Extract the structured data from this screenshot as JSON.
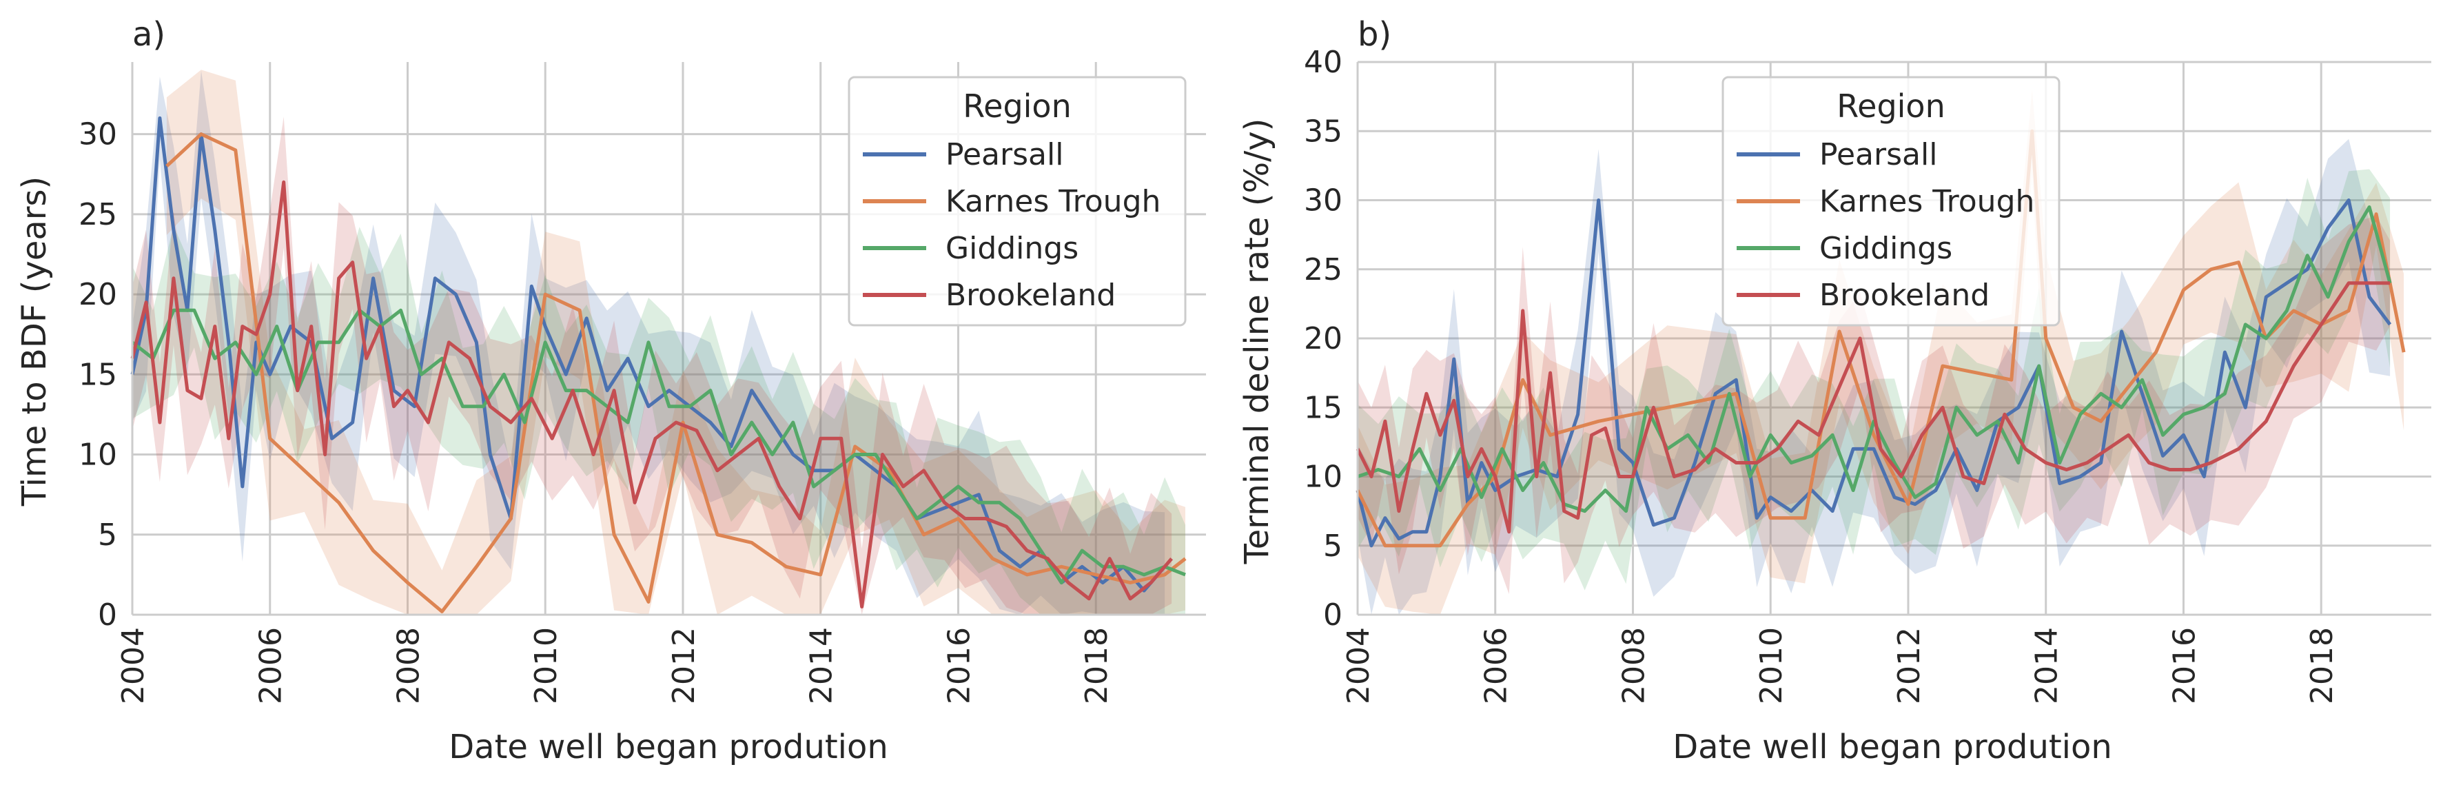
{
  "figure": {
    "panels": [
      {
        "tag": "a)",
        "xlabel": "Date well began prodution",
        "ylabel": "Time to BDF (years)",
        "legend_title": "Region",
        "legend_loc": "upper right"
      },
      {
        "tag": "b)",
        "xlabel": "Date well began prodution",
        "ylabel": "Terminal decline rate (%/y)",
        "legend_title": "Region",
        "legend_loc": "upper center"
      }
    ]
  },
  "chart_data": [
    {
      "type": "line",
      "panel": "a)",
      "xlabel": "Date well began prodution",
      "ylabel": "Time to BDF (years)",
      "xlim": [
        2004,
        2019.6
      ],
      "ylim": [
        0,
        34.5
      ],
      "xticks": [
        "2004",
        "2006",
        "2008",
        "2010",
        "2012",
        "2014",
        "2016",
        "2018"
      ],
      "yticks": [
        "0",
        "5",
        "10",
        "15",
        "20",
        "25",
        "30"
      ],
      "grid": true,
      "legend_title": "Region",
      "legend_loc": "upper right",
      "series": [
        {
          "name": "Pearsall",
          "color": "#4c72b0",
          "x": [
            2004,
            2004.2,
            2004.4,
            2004.6,
            2004.8,
            2005,
            2005.2,
            2005.4,
            2005.6,
            2005.8,
            2006,
            2006.3,
            2006.6,
            2006.9,
            2007.2,
            2007.5,
            2007.8,
            2008.1,
            2008.4,
            2008.7,
            2009,
            2009.2,
            2009.5,
            2009.8,
            2010,
            2010.3,
            2010.6,
            2010.9,
            2011.2,
            2011.5,
            2011.8,
            2012.1,
            2012.4,
            2012.7,
            2013,
            2013.3,
            2013.6,
            2013.9,
            2014.2,
            2014.5,
            2014.8,
            2015.1,
            2015.4,
            2015.7,
            2016,
            2016.3,
            2016.6,
            2016.9,
            2017.2,
            2017.5,
            2017.8,
            2018.1,
            2018.4,
            2018.7,
            2019
          ],
          "y": [
            15,
            19,
            31,
            24,
            19,
            30,
            24,
            17,
            8,
            17,
            15,
            18,
            17,
            11,
            12,
            21,
            14,
            13,
            21,
            20,
            17,
            10,
            6,
            20.5,
            18,
            15,
            18.5,
            14,
            16,
            13,
            14,
            13,
            12,
            10.5,
            14,
            12,
            10,
            9,
            9,
            10,
            9,
            8,
            6,
            6.5,
            7,
            7.5,
            4,
            3,
            4,
            2,
            3,
            2,
            3,
            1.5,
            3
          ]
        },
        {
          "name": "Karnes Trough",
          "color": "#dd8452",
          "x": [
            2004.5,
            2005,
            2005.5,
            2006,
            2006.5,
            2007,
            2007.5,
            2008,
            2008.5,
            2009,
            2009.5,
            2010,
            2010.5,
            2011,
            2011.5,
            2012,
            2012.5,
            2013,
            2013.5,
            2014,
            2014.5,
            2015,
            2015.5,
            2016,
            2016.5,
            2017,
            2017.5,
            2018,
            2018.5,
            2019,
            2019.3
          ],
          "y": [
            28,
            30,
            29,
            11,
            9,
            7,
            4,
            2,
            0.2,
            3,
            6,
            20,
            19,
            5,
            0.8,
            12,
            5,
            4.5,
            3,
            2.5,
            10.5,
            9,
            5,
            6,
            3.5,
            2.5,
            3,
            2.5,
            2,
            2.5,
            3.5
          ]
        },
        {
          "name": "Giddings",
          "color": "#55a868",
          "x": [
            2004,
            2004.3,
            2004.6,
            2004.9,
            2005.2,
            2005.5,
            2005.8,
            2006.1,
            2006.4,
            2006.7,
            2007,
            2007.3,
            2007.6,
            2007.9,
            2008.2,
            2008.5,
            2008.8,
            2009.1,
            2009.4,
            2009.7,
            2010,
            2010.3,
            2010.6,
            2010.9,
            2011.2,
            2011.5,
            2011.8,
            2012.1,
            2012.4,
            2012.7,
            2013,
            2013.3,
            2013.6,
            2013.9,
            2014.2,
            2014.5,
            2014.8,
            2015.1,
            2015.4,
            2015.7,
            2016,
            2016.3,
            2016.6,
            2016.9,
            2017.2,
            2017.5,
            2017.8,
            2018.1,
            2018.4,
            2018.7,
            2019,
            2019.3
          ],
          "y": [
            17,
            16,
            19,
            19,
            16,
            17,
            15,
            18,
            14,
            17,
            17,
            19,
            18,
            19,
            15,
            16,
            13,
            13,
            15,
            12,
            17,
            14,
            14,
            13,
            12,
            17,
            13,
            13,
            14,
            10,
            12,
            10,
            12,
            8,
            9,
            10,
            10,
            8,
            6,
            7,
            8,
            7,
            7,
            6,
            4,
            2,
            4,
            3,
            3,
            2.5,
            3,
            2.5
          ]
        },
        {
          "name": "Brookeland",
          "color": "#c44e52",
          "x": [
            2004,
            2004.2,
            2004.4,
            2004.6,
            2004.8,
            2005,
            2005.2,
            2005.4,
            2005.6,
            2005.8,
            2006,
            2006.2,
            2006.4,
            2006.6,
            2006.8,
            2007,
            2007.2,
            2007.4,
            2007.6,
            2007.8,
            2008,
            2008.3,
            2008.6,
            2008.9,
            2009.2,
            2009.5,
            2009.8,
            2010.1,
            2010.4,
            2010.7,
            2011,
            2011.3,
            2011.6,
            2011.9,
            2012.2,
            2012.5,
            2012.8,
            2013.1,
            2013.4,
            2013.7,
            2014,
            2014.3,
            2014.6,
            2014.9,
            2015.2,
            2015.5,
            2015.8,
            2016.1,
            2016.4,
            2016.7,
            2017,
            2017.3,
            2017.6,
            2017.9,
            2018.2,
            2018.5,
            2018.8,
            2019.1
          ],
          "y": [
            16,
            19.5,
            12,
            21,
            14,
            13.5,
            18,
            11,
            18,
            17.5,
            20,
            27,
            14,
            18,
            10,
            21,
            22,
            16,
            18,
            13,
            14,
            12,
            17,
            16,
            13,
            12,
            13.5,
            11,
            14,
            10,
            14,
            7,
            11,
            12,
            11.5,
            9,
            10,
            11,
            8,
            6,
            11,
            11,
            0.5,
            10,
            8,
            9,
            7,
            6,
            6,
            5.5,
            4,
            3.5,
            2,
            1,
            3.5,
            1,
            2,
            3.5
          ]
        }
      ]
    },
    {
      "type": "line",
      "panel": "b)",
      "xlabel": "Date well began prodution",
      "ylabel": "Terminal decline rate (%/y)",
      "xlim": [
        2004,
        2019.6
      ],
      "ylim": [
        0,
        40
      ],
      "xticks": [
        "2004",
        "2006",
        "2008",
        "2010",
        "2012",
        "2014",
        "2016",
        "2018"
      ],
      "yticks": [
        "0",
        "5",
        "10",
        "15",
        "20",
        "25",
        "30",
        "35",
        "40"
      ],
      "grid": true,
      "legend_title": "Region",
      "legend_loc": "upper center",
      "series": [
        {
          "name": "Pearsall",
          "color": "#4c72b0",
          "x": [
            2004,
            2004.2,
            2004.4,
            2004.6,
            2004.8,
            2005,
            2005.2,
            2005.4,
            2005.6,
            2005.8,
            2006,
            2006.3,
            2006.6,
            2006.9,
            2007.2,
            2007.5,
            2007.8,
            2008,
            2008.3,
            2008.6,
            2008.9,
            2009.2,
            2009.5,
            2009.8,
            2010,
            2010.3,
            2010.6,
            2010.9,
            2011.2,
            2011.5,
            2011.8,
            2012.1,
            2012.4,
            2012.7,
            2013,
            2013.3,
            2013.6,
            2013.9,
            2014.2,
            2014.5,
            2014.8,
            2015.1,
            2015.4,
            2015.7,
            2016,
            2016.3,
            2016.6,
            2016.9,
            2017.2,
            2017.5,
            2017.8,
            2018.1,
            2018.4,
            2018.7,
            2019
          ],
          "y": [
            9,
            5,
            7,
            5.5,
            6,
            6,
            10,
            18.5,
            8,
            11,
            9,
            10,
            10.5,
            10,
            14.5,
            30,
            12,
            11,
            6.5,
            7,
            11,
            16,
            17,
            7,
            8.5,
            7.5,
            9,
            7.5,
            12,
            12,
            8.5,
            8,
            9,
            12,
            9,
            14,
            15,
            18,
            9.5,
            10,
            11,
            20.5,
            16,
            11.5,
            13,
            10,
            19,
            15,
            23,
            24,
            25,
            28,
            30,
            23,
            21
          ]
        },
        {
          "name": "Karnes Trough",
          "color": "#dd8452",
          "x": [
            2004,
            2004.4,
            2004.8,
            2005.2,
            2005.6,
            2006,
            2006.4,
            2006.8,
            2007.5,
            2008.5,
            2009.5,
            2010,
            2010.5,
            2011,
            2011.5,
            2012,
            2012.5,
            2013,
            2013.5,
            2013.8,
            2014,
            2014.4,
            2014.8,
            2015.2,
            2015.6,
            2016,
            2016.4,
            2016.8,
            2017.2,
            2017.6,
            2018,
            2018.4,
            2018.8,
            2019.2
          ],
          "y": [
            9,
            5,
            5,
            5,
            8,
            10,
            17,
            13,
            14,
            15,
            16,
            7,
            7,
            20.5,
            13,
            8,
            18,
            17.5,
            17,
            35,
            20,
            15,
            14,
            16.5,
            19,
            23.5,
            25,
            25.5,
            20,
            22,
            21,
            22,
            29,
            19
          ]
        },
        {
          "name": "Giddings",
          "color": "#55a868",
          "x": [
            2004,
            2004.3,
            2004.6,
            2004.9,
            2005.2,
            2005.5,
            2005.8,
            2006.1,
            2006.4,
            2006.7,
            2007,
            2007.3,
            2007.6,
            2007.9,
            2008.2,
            2008.5,
            2008.8,
            2009.1,
            2009.4,
            2009.7,
            2010,
            2010.3,
            2010.6,
            2010.9,
            2011.2,
            2011.5,
            2011.8,
            2012.1,
            2012.4,
            2012.7,
            2013,
            2013.3,
            2013.6,
            2013.9,
            2014.2,
            2014.5,
            2014.8,
            2015.1,
            2015.4,
            2015.7,
            2016,
            2016.3,
            2016.6,
            2016.9,
            2017.2,
            2017.5,
            2017.8,
            2018.1,
            2018.4,
            2018.7,
            2019
          ],
          "y": [
            10,
            10.5,
            10,
            12,
            9,
            12,
            8.5,
            12,
            9,
            11,
            8,
            7.5,
            9,
            7.5,
            15,
            12,
            13,
            11,
            16,
            10,
            13,
            11,
            11.5,
            13,
            9,
            14,
            11,
            8.5,
            9.5,
            15,
            13,
            14,
            11,
            18,
            11,
            14.5,
            16,
            15,
            17,
            13,
            14.5,
            15,
            16,
            21,
            20,
            22,
            26,
            23,
            27,
            29.5,
            24
          ]
        },
        {
          "name": "Brookeland",
          "color": "#c44e52",
          "x": [
            2004,
            2004.2,
            2004.4,
            2004.6,
            2004.8,
            2005,
            2005.2,
            2005.4,
            2005.6,
            2005.8,
            2006,
            2006.2,
            2006.4,
            2006.6,
            2006.8,
            2007,
            2007.2,
            2007.4,
            2007.6,
            2007.8,
            2008,
            2008.3,
            2008.6,
            2008.9,
            2009.2,
            2009.5,
            2009.8,
            2010.1,
            2010.4,
            2010.7,
            2011,
            2011.3,
            2011.6,
            2011.9,
            2012.2,
            2012.5,
            2012.8,
            2013.1,
            2013.4,
            2013.7,
            2014,
            2014.3,
            2014.6,
            2014.9,
            2015.2,
            2015.5,
            2015.8,
            2016.1,
            2016.4,
            2016.8,
            2017.2,
            2017.6,
            2018,
            2018.4,
            2018.8,
            2019
          ],
          "y": [
            12,
            10,
            14,
            7.5,
            12,
            16,
            13,
            15.5,
            10,
            12,
            10,
            6,
            22,
            10,
            17.5,
            7.5,
            7,
            13,
            13.5,
            10,
            10,
            15,
            10,
            10.5,
            12,
            11,
            11,
            12,
            14,
            13,
            16.5,
            20,
            12,
            10,
            13,
            15,
            10,
            9.5,
            14.5,
            12,
            11,
            10.5,
            11,
            12,
            13,
            11,
            10.5,
            10.5,
            11,
            12,
            14,
            18,
            21,
            24,
            24,
            24
          ]
        }
      ]
    }
  ]
}
